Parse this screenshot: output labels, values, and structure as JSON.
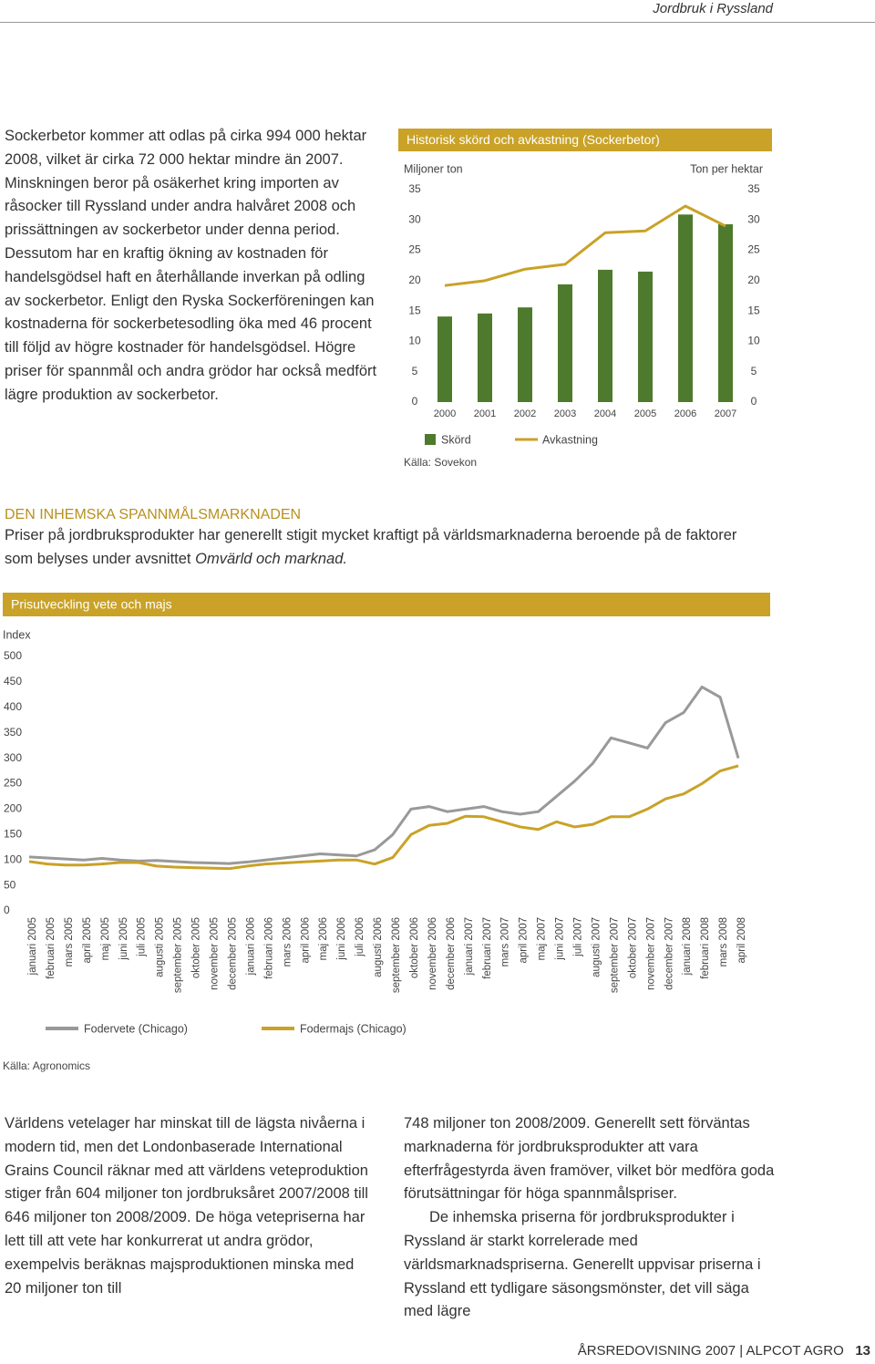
{
  "header": {
    "section": "Jordbruk i Ryssland"
  },
  "intro_text": "Sockerbetor kommer att odlas på cirka 994 000 hektar 2008, vilket är cirka 72 000 hektar mindre än 2007. Minskningen beror på osäkerhet kring importen av råsocker till Ryssland under andra halvåret 2008 och prissättningen av sockerbetor under denna period. Dessutom har en kraftig ökning av kostnaden för handelsgödsel haft en återhållande inverkan på odling av sockerbetor. Enligt den Ryska Sockerföreningen kan kostnaderna för sockerbetesodling öka med 46 procent till följd av högre kostnader för handelsgödsel. Högre priser för spannmål och andra grödor har också medfört lägre produktion av sockerbetor.",
  "section": {
    "heading": "DEN INHEMSKA SPANNMÅLSMARKNADEN",
    "text": "Priser på jordbruksprodukter har generellt stigit mycket kraftigt på världsmarknaderna beroende på de faktorer som belyses under avsnittet ",
    "emphasis": "Omvärld och marknad."
  },
  "chart_data": [
    {
      "type": "bar",
      "title": "Historisk skörd och avkastning (Sockerbetor)",
      "y_label": "Miljoner ton",
      "y2_label": "Ton per hektar",
      "categories": [
        "2000",
        "2001",
        "2002",
        "2003",
        "2004",
        "2005",
        "2006",
        "2007"
      ],
      "series": [
        {
          "name": "Skörd",
          "type": "bar",
          "color": "#4e7a2d",
          "values": [
            14.1,
            14.6,
            15.6,
            19.4,
            21.8,
            21.5,
            30.9,
            29.3
          ]
        },
        {
          "name": "Avkastning",
          "type": "line",
          "axis": "y2",
          "color": "#c9a227",
          "values": [
            19.2,
            20,
            21.9,
            22.7,
            27.9,
            28.2,
            32.3,
            29
          ]
        }
      ],
      "ylim": [
        0,
        35
      ],
      "yticks": [
        0,
        5,
        10,
        15,
        20,
        25,
        30,
        35
      ],
      "y2lim": [
        0,
        35
      ],
      "y2ticks": [
        0,
        5,
        10,
        15,
        20,
        25,
        30,
        35
      ],
      "source": "Källa: Sovekon"
    },
    {
      "type": "line",
      "title": "Prisutveckling vete och majs",
      "y_label": "Index",
      "categories": [
        "januari 2005",
        "februari 2005",
        "mars 2005",
        "april 2005",
        "maj 2005",
        "juni 2005",
        "juli 2005",
        "augusti 2005",
        "september 2005",
        "oktober 2005",
        "november 2005",
        "december 2005",
        "januari 2006",
        "februari 2006",
        "mars 2006",
        "april 2006",
        "maj 2006",
        "juni 2006",
        "juli 2006",
        "augusti 2006",
        "september 2006",
        "oktober 2006",
        "november 2006",
        "december 2006",
        "januari 2007",
        "februari 2007",
        "mars 2007",
        "april 2007",
        "maj 2007",
        "juni 2007",
        "juli 2007",
        "augusti 2007",
        "september 2007",
        "oktober 2007",
        "november 2007",
        "december 2007",
        "januari 2008",
        "februari 2008",
        "mars 2008",
        "april 2008"
      ],
      "series": [
        {
          "name": "Fodervete (Chicago)",
          "color": "#999999",
          "values": [
            106,
            104,
            102,
            100,
            103,
            100,
            98,
            99,
            97,
            95,
            94,
            93,
            96,
            100,
            104,
            108,
            112,
            110,
            108,
            120,
            150,
            200,
            205,
            195,
            200,
            205,
            195,
            190,
            195,
            225,
            255,
            290,
            340,
            330,
            320,
            370,
            390,
            440,
            420,
            300
          ]
        },
        {
          "name": "Fodermajs (Chicago)",
          "color": "#c9a227",
          "values": [
            97,
            92,
            90,
            90,
            92,
            95,
            95,
            88,
            86,
            85,
            84,
            83,
            88,
            92,
            94,
            96,
            98,
            100,
            100,
            92,
            105,
            150,
            168,
            172,
            186,
            185,
            175,
            165,
            160,
            175,
            165,
            170,
            185,
            185,
            200,
            220,
            230,
            250,
            275,
            285
          ]
        }
      ],
      "ylim": [
        0,
        500
      ],
      "yticks": [
        0,
        50,
        100,
        150,
        200,
        250,
        300,
        350,
        400,
        450,
        500
      ],
      "source": "Källa: Agronomics"
    }
  ],
  "bottom_left": "Världens vetelager har minskat till de lägsta nivåerna i modern tid, men det Londonbaserade International Grains Council räknar med att världens veteproduktion stiger från 604 miljoner ton jordbruksåret 2007/2008 till 646 miljoner ton 2008/2009. De höga vetepriserna har lett till att vete har konkurrerat ut andra grödor, exempelvis beräknas majsproduktionen minska med 20 miljoner ton till",
  "bottom_right": [
    "748 miljoner ton 2008/2009. Generellt sett förväntas marknaderna för jordbruksprodukter att vara efterfrågestyrda även framöver, vilket bör medföra goda förutsättningar för höga spannmålspriser.",
    "De inhemska priserna för jordbruksprodukter i Ryssland är starkt korrelerade med världsmarknadspriserna. Generellt uppvisar priserna i Ryssland ett tydligare säsongsmönster, det vill säga med lägre"
  ],
  "footer": {
    "report": "ÅRSREDOVISNING 2007",
    "separator": "|",
    "company": "ALPCOT AGRO",
    "page": "13"
  }
}
